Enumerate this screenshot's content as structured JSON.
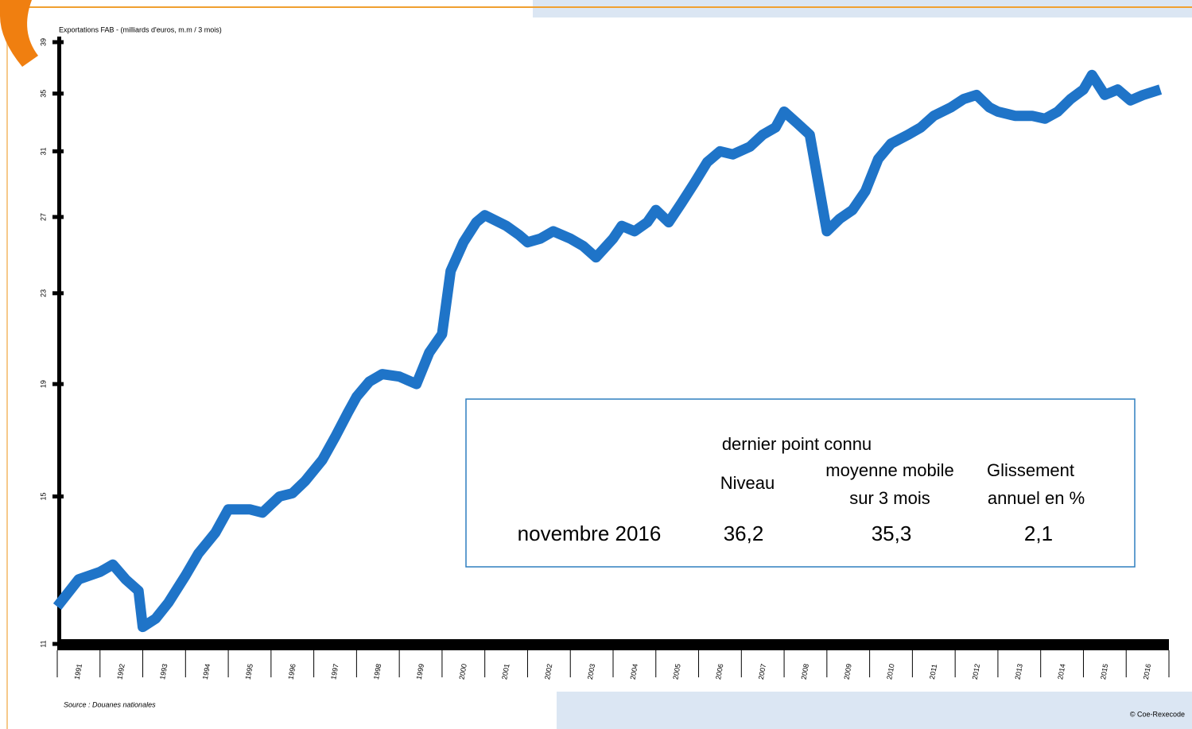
{
  "chart_data": {
    "type": "line",
    "title": "Exportations FAB - (milliards d'euros, m.m / 3 mois)",
    "source": "Source : Douanes nationales",
    "credit": "© Coe-Rexecode",
    "yscale": "log",
    "ylim": [
      11,
      39
    ],
    "yticks": [
      11,
      15,
      19,
      23,
      27,
      31,
      35,
      39
    ],
    "xlim": [
      1991,
      2017
    ],
    "xticks": [
      1991,
      1992,
      1993,
      1994,
      1995,
      1996,
      1997,
      1998,
      1999,
      2000,
      2001,
      2002,
      2003,
      2004,
      2005,
      2006,
      2007,
      2008,
      2009,
      2010,
      2011,
      2012,
      2013,
      2014,
      2015,
      2016
    ],
    "x": [
      1991.0,
      1991.5,
      1992.0,
      1992.3,
      1992.6,
      1992.9,
      1993.0,
      1993.3,
      1993.6,
      1994.0,
      1994.3,
      1994.7,
      1995.0,
      1995.5,
      1995.8,
      1996.2,
      1996.5,
      1996.8,
      1997.2,
      1997.5,
      1997.8,
      1998.0,
      1998.3,
      1998.6,
      1999.0,
      1999.4,
      1999.7,
      2000.0,
      2000.2,
      2000.5,
      2000.8,
      2001.0,
      2001.5,
      2001.8,
      2002.0,
      2002.3,
      2002.6,
      2003.0,
      2003.3,
      2003.6,
      2004.0,
      2004.2,
      2004.5,
      2004.8,
      2005.0,
      2005.3,
      2005.6,
      2005.9,
      2006.2,
      2006.5,
      2006.8,
      2007.2,
      2007.5,
      2007.8,
      2008.0,
      2008.3,
      2008.6,
      2008.8,
      2009.0,
      2009.3,
      2009.6,
      2009.9,
      2010.2,
      2010.5,
      2010.9,
      2011.2,
      2011.5,
      2011.9,
      2012.2,
      2012.5,
      2012.8,
      2013.0,
      2013.4,
      2013.8,
      2014.1,
      2014.4,
      2014.7,
      2015.0,
      2015.2,
      2015.5,
      2015.8,
      2016.1,
      2016.4,
      2016.8
    ],
    "series": [
      {
        "color": "#1f74c8",
        "values": [
          11.9,
          12.6,
          12.8,
          13.0,
          12.6,
          12.3,
          11.4,
          11.6,
          12.0,
          12.7,
          13.3,
          13.9,
          14.6,
          14.6,
          14.5,
          15.0,
          15.1,
          15.5,
          16.2,
          17.0,
          17.9,
          18.5,
          19.1,
          19.4,
          19.3,
          19.0,
          20.3,
          21.1,
          24.1,
          25.6,
          26.7,
          27.1,
          26.5,
          26.0,
          25.6,
          25.8,
          26.2,
          25.8,
          25.4,
          24.8,
          25.8,
          26.5,
          26.2,
          26.7,
          27.4,
          26.7,
          27.8,
          29.0,
          30.3,
          31.0,
          30.8,
          31.3,
          32.1,
          32.6,
          33.7,
          32.9,
          32.1,
          29.0,
          26.2,
          26.9,
          27.4,
          28.5,
          30.5,
          31.5,
          32.1,
          32.6,
          33.4,
          34.0,
          34.6,
          34.9,
          34.0,
          33.7,
          33.4,
          33.4,
          33.2,
          33.7,
          34.6,
          35.3,
          36.4,
          34.9,
          35.3,
          34.5,
          34.9,
          35.3
        ]
      }
    ]
  },
  "table": {
    "header": "dernier point connu",
    "columns": [
      [
        "Niveau"
      ],
      [
        "moyenne mobile",
        "sur 3 mois"
      ],
      [
        "Glissement",
        "annuel en %"
      ]
    ],
    "row": [
      "novembre 2016",
      "36,2",
      "35,3",
      "2,1"
    ]
  }
}
